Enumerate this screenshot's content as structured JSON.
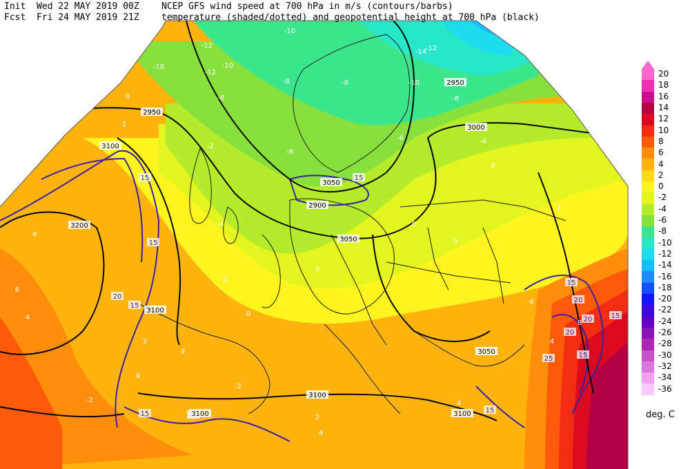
{
  "header": {
    "init_label": "Init",
    "init_time": "Wed 22 MAY 2019 00Z",
    "fcst_label": "Fcst",
    "fcst_time": "Fri 24 MAY 2019 21Z",
    "line1": "NCEP GFS wind speed at 700 hPa in m/s (contours/barbs)",
    "line2": "temperature (shaded/dotted) and geopotential height at 700 hPa (black)"
  },
  "colors": {
    "background": "#ffffff",
    "height_contour": "#000000",
    "wind_contour": "#3b1fa0",
    "coast": "#1a1a1a"
  },
  "scale": {
    "unit": "deg. C",
    "levels": [
      {
        "label": "20",
        "color": "#ff66cc"
      },
      {
        "label": "18",
        "color": "#ee2fb4"
      },
      {
        "label": "16",
        "color": "#cc0f8c"
      },
      {
        "label": "14",
        "color": "#b30045"
      },
      {
        "label": "12",
        "color": "#dc0a1e"
      },
      {
        "label": "10",
        "color": "#f52c14"
      },
      {
        "label": "8",
        "color": "#ff5a0a"
      },
      {
        "label": "6",
        "color": "#ff8f0a"
      },
      {
        "label": "4",
        "color": "#ffb30f"
      },
      {
        "label": "2",
        "color": "#ffd81a"
      },
      {
        "label": "0",
        "color": "#fff51e"
      },
      {
        "label": "-2",
        "color": "#e3f51e"
      },
      {
        "label": "-4",
        "color": "#b4ec2c"
      },
      {
        "label": "-6",
        "color": "#87e03c"
      },
      {
        "label": "-8",
        "color": "#3ce68c"
      },
      {
        "label": "-10",
        "color": "#28e6c8"
      },
      {
        "label": "-12",
        "color": "#1edcf0"
      },
      {
        "label": "-14",
        "color": "#14beff"
      },
      {
        "label": "-16",
        "color": "#1e8cff"
      },
      {
        "label": "-18",
        "color": "#1450ff"
      },
      {
        "label": "-20",
        "color": "#1414ff"
      },
      {
        "label": "-22",
        "color": "#3c0adc"
      },
      {
        "label": "-24",
        "color": "#6400c8"
      },
      {
        "label": "-26",
        "color": "#8c14b4"
      },
      {
        "label": "-28",
        "color": "#aa28b4"
      },
      {
        "label": "-30",
        "color": "#c850c8"
      },
      {
        "label": "-32",
        "color": "#dc78dc"
      },
      {
        "label": "-34",
        "color": "#f0a0f0"
      },
      {
        "label": "-36",
        "color": "#ffc8ff"
      }
    ]
  },
  "map_labels": {
    "height_contours": [
      "2950",
      "3000",
      "3050",
      "3050",
      "3100",
      "3200",
      "3100",
      "3050",
      "3100",
      "3100",
      "3100",
      "2950",
      "2900"
    ],
    "wind_contours": [
      "15",
      "15",
      "15",
      "20",
      "15",
      "15",
      "15",
      "20",
      "15",
      "20",
      "15",
      "20",
      "25",
      "15",
      "15"
    ],
    "temperature": [
      "-12",
      "-12",
      "-10",
      "-10",
      "-10",
      "-8",
      "-8",
      "-8",
      "-10",
      "-8",
      "-6",
      "-4",
      "0",
      "-2",
      "0",
      "2",
      "-4",
      "-2",
      "0",
      "0",
      "2",
      "0",
      "4",
      "2",
      "4",
      "4",
      "0",
      "-2",
      "2",
      "-2",
      "4",
      "6",
      "4",
      "4",
      "4",
      "4",
      "8",
      "-12",
      "-14",
      "-8"
    ]
  }
}
